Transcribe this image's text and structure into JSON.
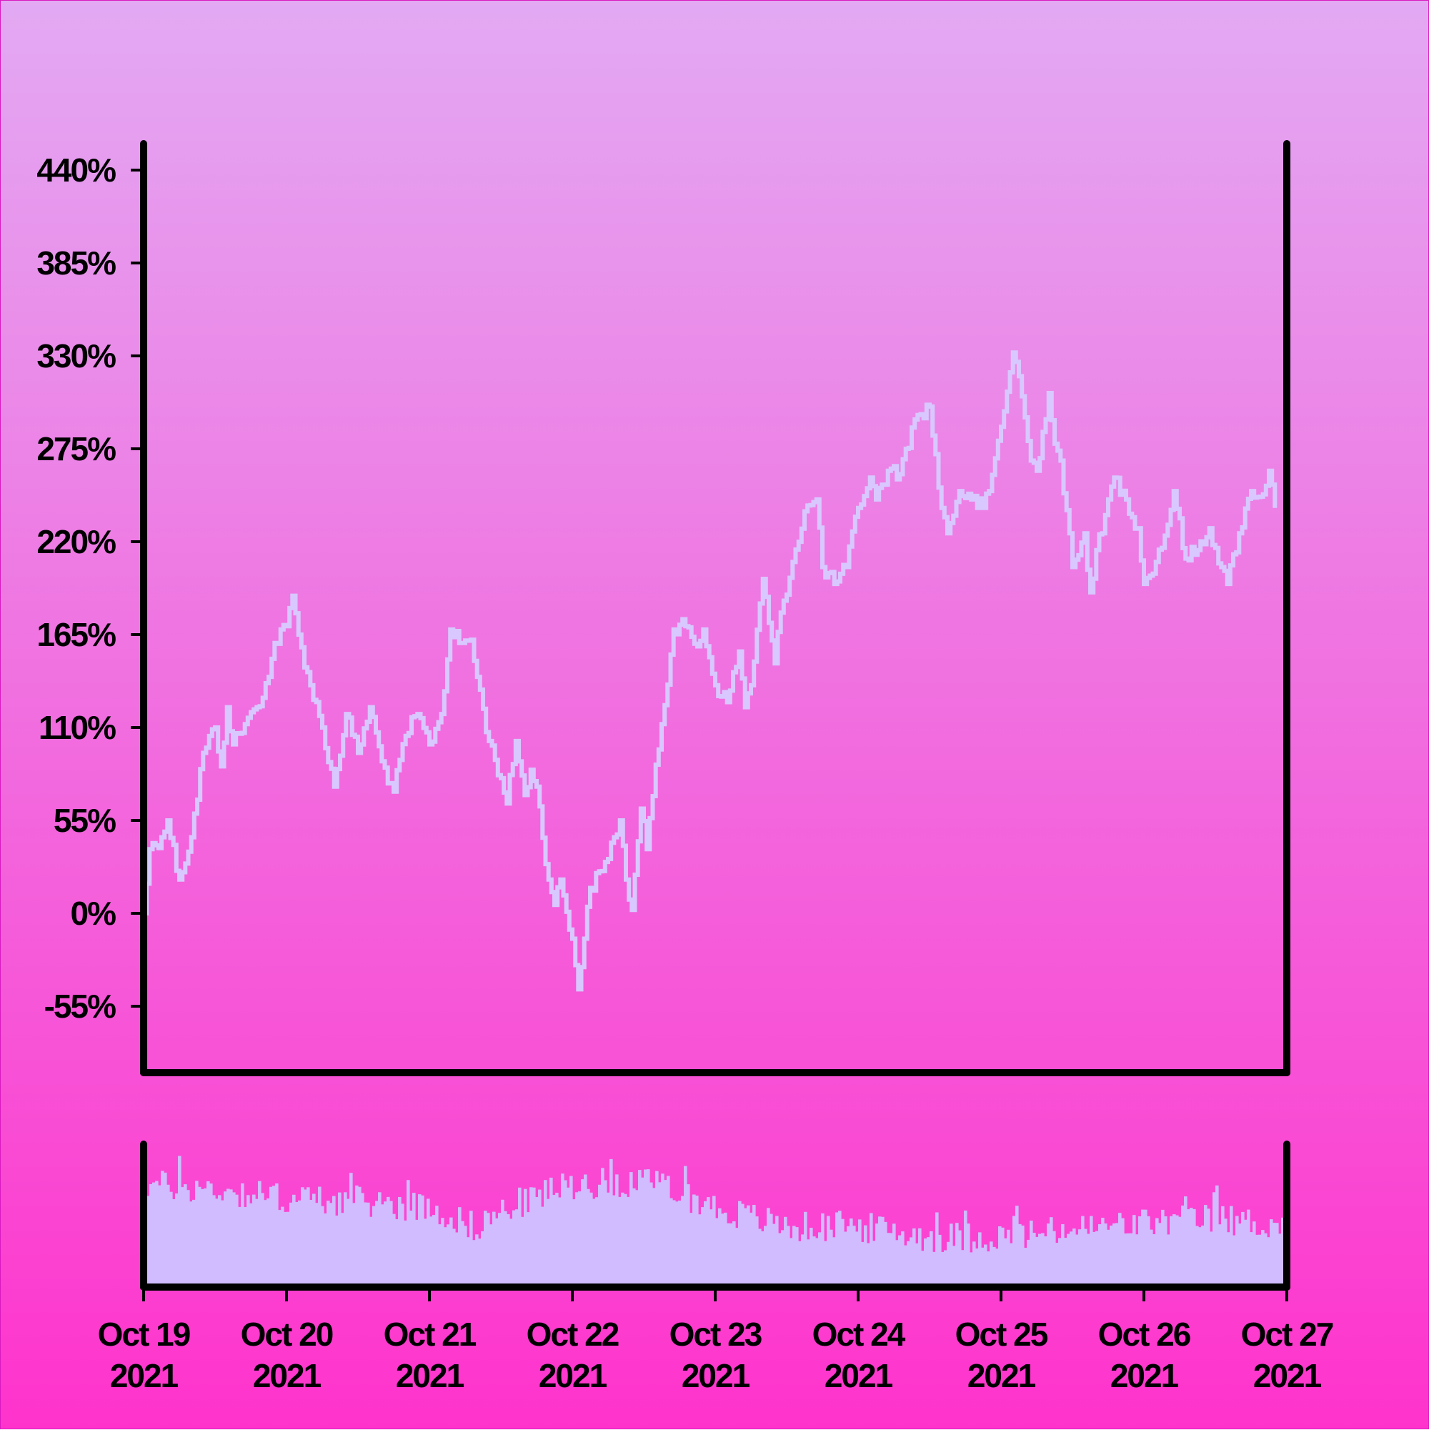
{
  "colors": {
    "background_top": "#e3a9f3",
    "background_bottom": "#ff33cc",
    "line": "#d8c8ff",
    "volume_bars": "#d0bcff",
    "axis": "#000000"
  },
  "chart_data": [
    {
      "type": "line",
      "title": "",
      "xlabel": "",
      "ylabel": "",
      "ylim": [
        -95,
        460
      ],
      "yticks": [
        -55,
        0,
        55,
        110,
        165,
        220,
        275,
        330,
        385,
        440
      ],
      "ytick_labels": [
        "-55%",
        "0%",
        "55%",
        "110%",
        "165%",
        "220%",
        "275%",
        "330%",
        "385%",
        "440%"
      ],
      "grid": false,
      "x_start": "2021-10-19",
      "x_end": "2021-10-27",
      "points": [
        [
          "2021-10-19T00:00",
          0
        ],
        [
          "2021-10-19T01:00",
          38
        ],
        [
          "2021-10-19T03:00",
          45
        ],
        [
          "2021-10-19T04:00",
          55
        ],
        [
          "2021-10-19T06:00",
          20
        ],
        [
          "2021-10-19T08:00",
          45
        ],
        [
          "2021-10-19T10:00",
          95
        ],
        [
          "2021-10-19T12:00",
          110
        ],
        [
          "2021-10-19T13:00",
          87
        ],
        [
          "2021-10-19T14:00",
          122
        ],
        [
          "2021-10-19T15:00",
          100
        ],
        [
          "2021-10-19T17:00",
          112
        ],
        [
          "2021-10-19T19:00",
          122
        ],
        [
          "2021-10-19T21:00",
          140
        ],
        [
          "2021-10-19T22:00",
          160
        ],
        [
          "2021-10-20T00:00",
          170
        ],
        [
          "2021-10-20T01:00",
          188
        ],
        [
          "2021-10-20T02:00",
          165
        ],
        [
          "2021-10-20T04:00",
          135
        ],
        [
          "2021-10-20T06:00",
          110
        ],
        [
          "2021-10-20T08:00",
          75
        ],
        [
          "2021-10-20T10:00",
          118
        ],
        [
          "2021-10-20T12:00",
          95
        ],
        [
          "2021-10-20T14:00",
          122
        ],
        [
          "2021-10-20T16:00",
          90
        ],
        [
          "2021-10-20T18:00",
          72
        ],
        [
          "2021-10-20T20:00",
          105
        ],
        [
          "2021-10-20T22:00",
          118
        ],
        [
          "2021-10-21T00:00",
          100
        ],
        [
          "2021-10-21T02:00",
          118
        ],
        [
          "2021-10-21T03:30",
          168
        ],
        [
          "2021-10-21T05:00",
          160
        ],
        [
          "2021-10-21T07:00",
          162
        ],
        [
          "2021-10-21T08:00",
          140
        ],
        [
          "2021-10-21T10:00",
          102
        ],
        [
          "2021-10-21T12:00",
          80
        ],
        [
          "2021-10-21T13:00",
          65
        ],
        [
          "2021-10-21T14:30",
          102
        ],
        [
          "2021-10-21T16:00",
          70
        ],
        [
          "2021-10-21T17:00",
          85
        ],
        [
          "2021-10-21T18:00",
          75
        ],
        [
          "2021-10-21T20:00",
          20
        ],
        [
          "2021-10-21T21:00",
          5
        ],
        [
          "2021-10-21T22:00",
          20
        ],
        [
          "2021-10-22T00:00",
          -15
        ],
        [
          "2021-10-22T01:00",
          -45
        ],
        [
          "2021-10-22T02:00",
          -15
        ],
        [
          "2021-10-22T03:00",
          15
        ],
        [
          "2021-10-22T05:00",
          25
        ],
        [
          "2021-10-22T07:00",
          45
        ],
        [
          "2021-10-22T08:00",
          55
        ],
        [
          "2021-10-22T09:00",
          20
        ],
        [
          "2021-10-22T10:00",
          2
        ],
        [
          "2021-10-22T11:30",
          62
        ],
        [
          "2021-10-22T12:30",
          38
        ],
        [
          "2021-10-22T14:00",
          88
        ],
        [
          "2021-10-22T15:00",
          112
        ],
        [
          "2021-10-22T17:00",
          168
        ],
        [
          "2021-10-22T19:00",
          170
        ],
        [
          "2021-10-22T21:00",
          158
        ],
        [
          "2021-10-22T22:00",
          168
        ],
        [
          "2021-10-23T00:00",
          135
        ],
        [
          "2021-10-23T02:00",
          125
        ],
        [
          "2021-10-23T04:00",
          155
        ],
        [
          "2021-10-23T05:00",
          122
        ],
        [
          "2021-10-23T06:00",
          135
        ],
        [
          "2021-10-23T08:00",
          198
        ],
        [
          "2021-10-23T09:00",
          172
        ],
        [
          "2021-10-23T10:00",
          148
        ],
        [
          "2021-10-23T11:00",
          178
        ],
        [
          "2021-10-23T13:00",
          208
        ],
        [
          "2021-10-23T15:00",
          238
        ],
        [
          "2021-10-23T17:00",
          245
        ],
        [
          "2021-10-23T18:00",
          205
        ],
        [
          "2021-10-23T20:00",
          195
        ],
        [
          "2021-10-23T22:00",
          205
        ],
        [
          "2021-10-24T00:00",
          240
        ],
        [
          "2021-10-24T02:00",
          258
        ],
        [
          "2021-10-24T03:00",
          245
        ],
        [
          "2021-10-24T05:00",
          262
        ],
        [
          "2021-10-24T07:00",
          260
        ],
        [
          "2021-10-24T08:00",
          275
        ],
        [
          "2021-10-24T10:00",
          295
        ],
        [
          "2021-10-24T12:00",
          300
        ],
        [
          "2021-10-24T14:00",
          240
        ],
        [
          "2021-10-24T15:00",
          225
        ],
        [
          "2021-10-24T17:00",
          250
        ],
        [
          "2021-10-24T19:00",
          245
        ],
        [
          "2021-10-24T21:00",
          240
        ],
        [
          "2021-10-24T22:00",
          250
        ],
        [
          "2021-10-25T00:00",
          288
        ],
        [
          "2021-10-25T02:00",
          332
        ],
        [
          "2021-10-25T03:00",
          318
        ],
        [
          "2021-10-25T05:00",
          268
        ],
        [
          "2021-10-25T06:00",
          262
        ],
        [
          "2021-10-25T07:00",
          285
        ],
        [
          "2021-10-25T08:00",
          308
        ],
        [
          "2021-10-25T09:00",
          278
        ],
        [
          "2021-10-25T10:00",
          268
        ],
        [
          "2021-10-25T12:00",
          205
        ],
        [
          "2021-10-25T13:00",
          212
        ],
        [
          "2021-10-25T14:00",
          225
        ],
        [
          "2021-10-25T15:00",
          190
        ],
        [
          "2021-10-25T16:00",
          215
        ],
        [
          "2021-10-25T17:00",
          225
        ],
        [
          "2021-10-25T18:00",
          245
        ],
        [
          "2021-10-25T19:00",
          258
        ],
        [
          "2021-10-25T21:00",
          245
        ],
        [
          "2021-10-25T23:00",
          228
        ],
        [
          "2021-10-26T00:00",
          195
        ],
        [
          "2021-10-26T02:00",
          208
        ],
        [
          "2021-10-26T04:00",
          230
        ],
        [
          "2021-10-26T05:00",
          250
        ],
        [
          "2021-10-26T07:00",
          210
        ],
        [
          "2021-10-26T09:00",
          215
        ],
        [
          "2021-10-26T11:00",
          228
        ],
        [
          "2021-10-26T13:00",
          205
        ],
        [
          "2021-10-26T14:00",
          195
        ],
        [
          "2021-10-26T16:00",
          225
        ],
        [
          "2021-10-26T18:00",
          250
        ],
        [
          "2021-10-26T20:00",
          248
        ],
        [
          "2021-10-26T21:00",
          262
        ],
        [
          "2021-10-26T22:00",
          240
        ]
      ]
    },
    {
      "type": "bar",
      "title": "",
      "xlabel": "",
      "ylabel": "",
      "x_start": "2021-10-19",
      "x_end": "2021-10-27",
      "xtick_labels": [
        [
          "Oct 19",
          "2021"
        ],
        [
          "Oct 20",
          "2021"
        ],
        [
          "Oct 21",
          "2021"
        ],
        [
          "Oct 22",
          "2021"
        ],
        [
          "Oct 23",
          "2021"
        ],
        [
          "Oct 24",
          "2021"
        ],
        [
          "Oct 25",
          "2021"
        ],
        [
          "Oct 26",
          "2021"
        ],
        [
          "Oct 27",
          "2021"
        ]
      ],
      "bar_count": 400,
      "profile_days": [
        0,
        0.5,
        1,
        1.5,
        2,
        2.3,
        2.6,
        3,
        3.4,
        3.7,
        4,
        4.5,
        5,
        5.5,
        6,
        6.5,
        7,
        7.5,
        8
      ],
      "profile_levels": [
        0.72,
        0.68,
        0.62,
        0.6,
        0.56,
        0.42,
        0.58,
        0.72,
        0.74,
        0.68,
        0.55,
        0.42,
        0.42,
        0.35,
        0.35,
        0.4,
        0.45,
        0.48,
        0.42
      ]
    }
  ]
}
